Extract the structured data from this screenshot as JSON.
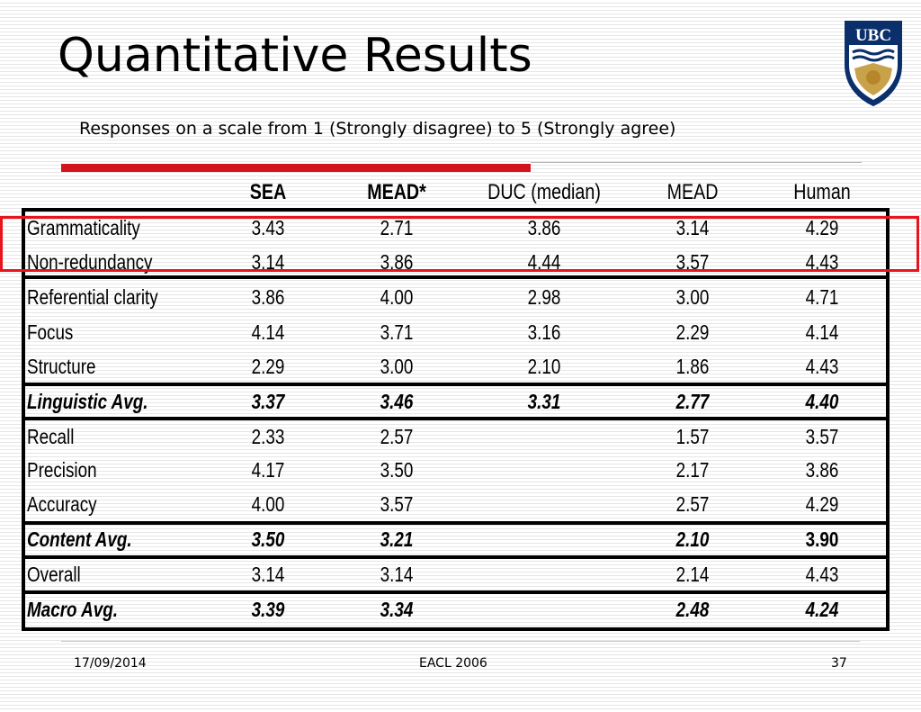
{
  "slide": {
    "title": "Quantitative Results",
    "subtitle": "Responses on a scale from 1 (Strongly disagree) to 5 (Strongly agree)",
    "logo_text": "UBC",
    "accent_color": "#d4141c",
    "highlight_color": "#e8141c"
  },
  "table": {
    "columns": [
      "",
      "SEA",
      "MEAD*",
      "DUC (median)",
      "MEAD",
      "Human"
    ],
    "rows": [
      {
        "label": "Grammaticality",
        "sea": "3.43",
        "mead_star": "2.71",
        "duc": "3.86",
        "mead": "3.14",
        "human": "4.29"
      },
      {
        "label": "Non-redundancy",
        "sea": "3.14",
        "mead_star": "3.86",
        "duc": "4.44",
        "mead": "3.57",
        "human": "4.43"
      },
      {
        "label": "Referential clarity",
        "sea": "3.86",
        "mead_star": "4.00",
        "duc": "2.98",
        "mead": "3.00",
        "human": "4.71"
      },
      {
        "label": "Focus",
        "sea": "4.14",
        "mead_star": "3.71",
        "duc": "3.16",
        "mead": "2.29",
        "human": "4.14"
      },
      {
        "label": "Structure",
        "sea": "2.29",
        "mead_star": "3.00",
        "duc": "2.10",
        "mead": "1.86",
        "human": "4.43"
      },
      {
        "label": "Linguistic Avg.",
        "sea": "3.37",
        "mead_star": "3.46",
        "duc": "3.31",
        "mead": "2.77",
        "human": "4.40"
      },
      {
        "label": "Recall",
        "sea": "2.33",
        "mead_star": "2.57",
        "duc": "",
        "mead": "1.57",
        "human": "3.57"
      },
      {
        "label": "Precision",
        "sea": "4.17",
        "mead_star": "3.50",
        "duc": "",
        "mead": "2.17",
        "human": "3.86"
      },
      {
        "label": "Accuracy",
        "sea": "4.00",
        "mead_star": "3.57",
        "duc": "",
        "mead": "2.57",
        "human": "4.29"
      },
      {
        "label": "Content Avg.",
        "sea": "3.50",
        "mead_star": "3.21",
        "duc": "",
        "mead": "2.10",
        "human": "3.90"
      },
      {
        "label": "Overall",
        "sea": "3.14",
        "mead_star": "3.14",
        "duc": "",
        "mead": "2.14",
        "human": "4.43"
      },
      {
        "label": "Macro Avg.",
        "sea": "3.39",
        "mead_star": "3.34",
        "duc": "",
        "mead": "2.48",
        "human": "4.24"
      }
    ]
  },
  "footer": {
    "date": "17/09/2014",
    "venue": "EACL 2006",
    "page": "37"
  }
}
